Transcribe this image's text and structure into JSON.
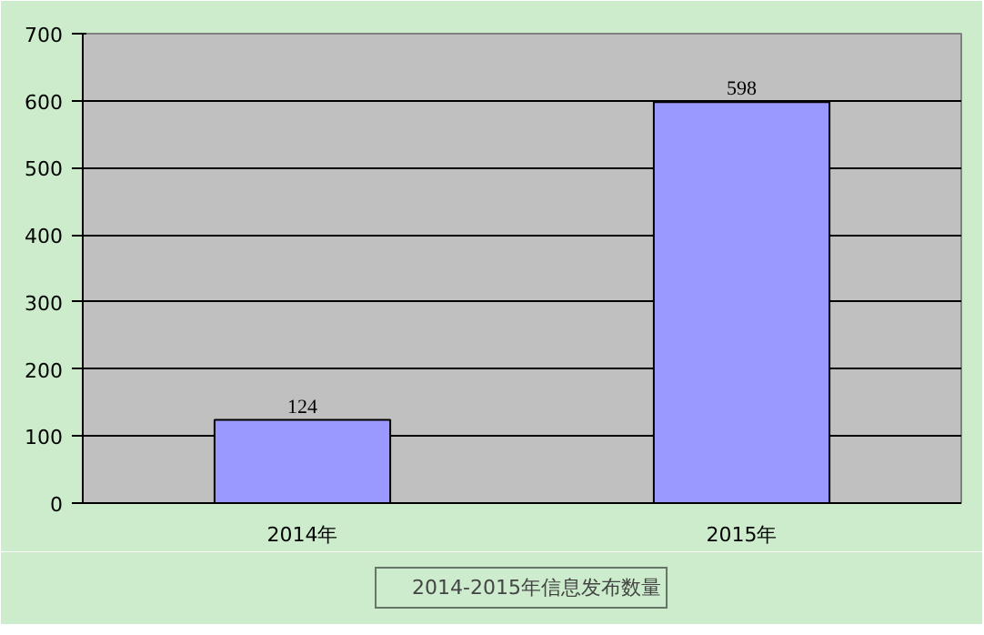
{
  "chart_data": {
    "type": "bar",
    "categories": [
      "2014年",
      "2015年"
    ],
    "series": [
      {
        "name": "2014-2015年信息发布数量",
        "color": "#9999ff",
        "values": [
          124,
          598
        ]
      }
    ],
    "ylim": [
      0,
      700
    ],
    "yticks": [
      0,
      100,
      200,
      300,
      400,
      500,
      600,
      700
    ],
    "grid": "y",
    "legend": "bottom",
    "data_labels": true
  }
}
